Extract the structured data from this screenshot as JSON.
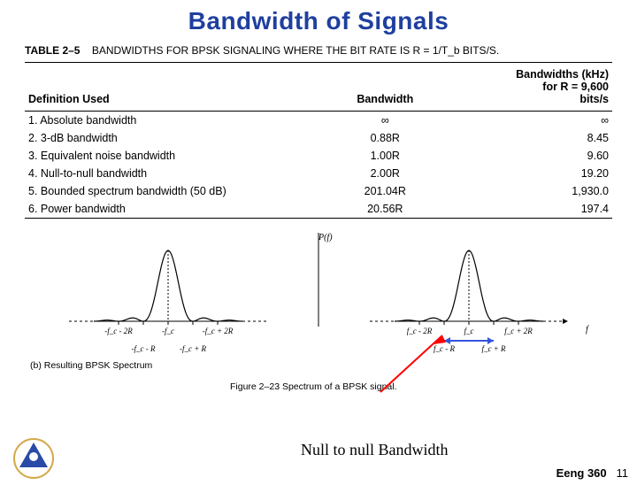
{
  "title": {
    "text": "Bandwidth of Signals",
    "color": "#1f3f9f",
    "fontsize": 28
  },
  "table": {
    "caption_prefix": "TABLE 2–5",
    "caption_text": "BANDWIDTHS FOR BPSK SIGNALING WHERE THE BIT RATE IS R = 1/T_b BITS/S.",
    "header_col1": "Definition Used",
    "header_col2": "Bandwidth",
    "header_col3_line1": "Bandwidths (kHz)",
    "header_col3_line2": "for R = 9,600",
    "header_col3_line3": "bits/s",
    "rows": [
      {
        "def": "1. Absolute bandwidth",
        "bw": "∞",
        "khz": "∞"
      },
      {
        "def": "2. 3-dB bandwidth",
        "bw": "0.88R",
        "khz": "8.45"
      },
      {
        "def": "3. Equivalent noise bandwidth",
        "bw": "1.00R",
        "khz": "9.60"
      },
      {
        "def": "4. Null-to-null bandwidth",
        "bw": "2.00R",
        "khz": "19.20"
      },
      {
        "def": "5. Bounded spectrum bandwidth (50 dB)",
        "bw": "201.04R",
        "khz": "1,930.0"
      },
      {
        "def": "6. Power bandwidth",
        "bw": "20.56R",
        "khz": "197.4"
      }
    ]
  },
  "figure": {
    "subfig_label": "(b) Resulting BPSK Spectrum",
    "caption": "Figure 2–23   Spectrum of a BPSK signal.",
    "psd_label": "P(f)",
    "lobes": {
      "center_height": 80,
      "side_height": 10,
      "main_half_width": 28,
      "side_lobe_width": 16,
      "line_color": "#000000",
      "line_width": 1.2,
      "dash_pattern": "3,3"
    },
    "left_axis": {
      "ticks": [
        "-f_c - 2R",
        "-f_c",
        "-f_c + 2R"
      ],
      "sub_ticks": [
        "-f_c - R",
        "-f_c + R"
      ]
    },
    "right_axis": {
      "ticks": [
        "f_c - 2R",
        "f_c",
        "f_c + 2R"
      ],
      "sub_ticks": [
        "f_c - R",
        "f_c + R"
      ],
      "f_label": "f"
    },
    "blue_arrow_color": "#3355dd"
  },
  "annotation": {
    "text": "Null to null Bandwidth",
    "arrow_color": "#ff0000"
  },
  "footer": {
    "course": "Eeng 360",
    "page": "11"
  },
  "logo": {
    "outer_color": "#d4a94a",
    "inner_color": "#2a4aa8"
  }
}
